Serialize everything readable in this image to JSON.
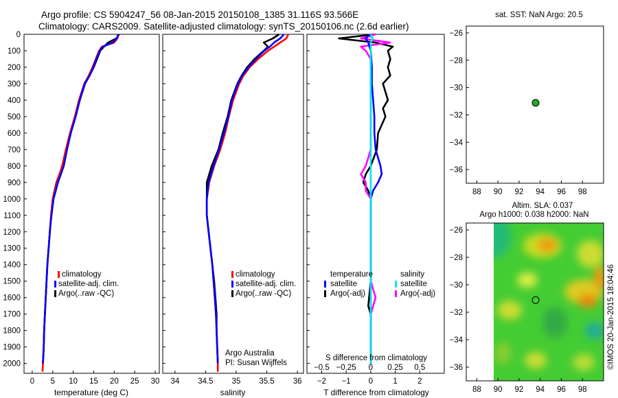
{
  "header": {
    "line1": "Argo profile: CS 5904247_56 08-Jan-2015 20150108_1385 31.116S 93.566E",
    "line2": "Climatology: CARS2009. Satellite-adjusted climatology: synTS_20150106.nc (2.6d earlier)"
  },
  "colors": {
    "climatology": "#ff0000",
    "satellite": "#0000ff",
    "argo": "#000000",
    "sat_s": "#00e5ee",
    "argo_s": "#ff00ff",
    "marker": "#22aa22"
  },
  "chart_data": [
    {
      "type": "line",
      "id": "temperature",
      "xlabel": "temperature (deg C)",
      "xlim": [
        -2,
        31
      ],
      "ylim": [
        0,
        2060
      ],
      "xticks": [
        0,
        5,
        10,
        15,
        20,
        25,
        30
      ],
      "xtick_labels": [
        "0",
        "5",
        "10",
        "15",
        "20",
        "25",
        "30"
      ],
      "yticks": [
        0,
        100,
        200,
        300,
        400,
        500,
        600,
        700,
        800,
        900,
        1000,
        1100,
        1200,
        1300,
        1400,
        1500,
        1600,
        1700,
        1800,
        1900,
        2000
      ],
      "ytick_labels": [
        "0",
        "100",
        "200",
        "300",
        "400",
        "500",
        "600",
        "700",
        "800",
        "900",
        "1000",
        "1100",
        "1200",
        "1300",
        "1400",
        "1500",
        "1600",
        "1700",
        "1800",
        "1900",
        "2000"
      ],
      "legend": [
        "climatology",
        "satellite-adj. clim.",
        "Argo(..raw -QC)"
      ],
      "series": [
        {
          "name": "climatology",
          "color": "#ff0000",
          "depth": [
            0,
            25,
            50,
            75,
            100,
            150,
            200,
            250,
            300,
            400,
            500,
            600,
            700,
            800,
            900,
            1000,
            1100,
            1200,
            1300,
            1400,
            1500,
            1600,
            1700,
            1800,
            1900,
            2000,
            2050
          ],
          "values": [
            21,
            20.8,
            20,
            17,
            16.3,
            15.5,
            14.7,
            13.8,
            12.7,
            11.4,
            10.4,
            9.2,
            8.2,
            7.3,
            6.0,
            5.0,
            4.6,
            4.3,
            4.0,
            3.7,
            3.5,
            3.3,
            3.1,
            2.9,
            2.8,
            2.6,
            2.5
          ]
        },
        {
          "name": "satellite-adj. clim.",
          "color": "#0000ff",
          "depth": [
            0,
            25,
            50,
            75,
            100,
            150,
            200,
            250,
            300,
            400,
            500,
            600,
            700,
            800,
            900,
            1000,
            1100,
            1200,
            1300,
            1400,
            1500,
            1600,
            1700,
            1800,
            1900,
            2000
          ],
          "values": [
            21,
            20.6,
            19.6,
            17.2,
            16.5,
            15.6,
            14.9,
            14.0,
            12.8,
            11.6,
            10.6,
            9.4,
            8.5,
            7.7,
            6.3,
            5.2,
            4.7,
            4.3,
            4.0,
            3.7,
            3.5,
            3.3,
            3.1,
            2.9,
            2.8,
            2.6
          ]
        },
        {
          "name": "Argo(..raw -QC)",
          "color": "#000000",
          "depth": [
            0,
            25,
            50,
            75,
            100,
            150,
            200,
            250,
            300,
            400,
            500,
            600,
            700,
            800,
            900,
            1000,
            1100,
            1200,
            1300,
            1400,
            1500,
            1600,
            1700,
            1800,
            1900,
            2000
          ],
          "values": [
            21.2,
            20.5,
            18.5,
            17.5,
            16.6,
            15.8,
            15.0,
            14.0,
            12.9,
            11.6,
            10.5,
            9.4,
            8.4,
            7.4,
            5.9,
            5.0,
            4.6,
            4.3,
            4.0,
            3.7,
            3.5,
            3.3,
            3.1,
            2.9,
            2.8,
            2.6
          ]
        }
      ]
    },
    {
      "type": "line",
      "id": "salinity",
      "xlabel": "salinity",
      "xlim": [
        33.8,
        36.1
      ],
      "ylim": [
        0,
        2060
      ],
      "xticks": [
        34,
        34.5,
        35,
        35.5,
        36
      ],
      "xtick_labels": [
        "34",
        "34.5",
        "35",
        "35.5",
        "36"
      ],
      "legend": [
        "climatology",
        "satellite-adj. clim.",
        "Argo(..raw -QC)"
      ],
      "annotation": [
        "Argo Australia",
        "PI: Susan Wijffels"
      ],
      "series": [
        {
          "name": "climatology",
          "color": "#ff0000",
          "depth": [
            0,
            25,
            50,
            75,
            100,
            150,
            200,
            250,
            300,
            400,
            500,
            600,
            700,
            800,
            900,
            1000,
            1100,
            1200,
            1300,
            1400,
            1500,
            1600,
            1700,
            1800,
            1900,
            2000,
            2050
          ],
          "values": [
            35.85,
            35.82,
            35.72,
            35.62,
            35.52,
            35.36,
            35.22,
            35.12,
            35.05,
            34.95,
            34.88,
            34.82,
            34.74,
            34.64,
            34.56,
            34.52,
            34.52,
            34.55,
            34.58,
            34.61,
            34.63,
            34.65,
            34.67,
            34.68,
            34.69,
            34.7,
            34.7
          ]
        },
        {
          "name": "satellite-adj. clim.",
          "color": "#0000ff",
          "depth": [
            0,
            25,
            50,
            75,
            100,
            150,
            200,
            250,
            300,
            400,
            500,
            600,
            700,
            800,
            900,
            1000,
            1100,
            1200,
            1300,
            1400,
            1500,
            1600,
            1700,
            1800,
            1900,
            2000
          ],
          "values": [
            35.78,
            35.72,
            35.62,
            35.55,
            35.46,
            35.32,
            35.2,
            35.1,
            35.03,
            34.93,
            34.87,
            34.8,
            34.72,
            34.63,
            34.55,
            34.52,
            34.52,
            34.55,
            34.58,
            34.61,
            34.63,
            34.65,
            34.67,
            34.68,
            34.69,
            34.7
          ]
        },
        {
          "name": "Argo(..raw -QC)",
          "color": "#000000",
          "depth": [
            0,
            25,
            50,
            75,
            100,
            150,
            200,
            250,
            300,
            400,
            500,
            600,
            700,
            800,
            900,
            1000,
            1100,
            1200,
            1300,
            1400,
            1500,
            1600,
            1700,
            1800,
            1900,
            2000
          ],
          "values": [
            35.7,
            35.6,
            35.45,
            35.52,
            35.45,
            35.3,
            35.18,
            35.09,
            35.02,
            34.92,
            34.86,
            34.78,
            34.71,
            34.6,
            34.52,
            34.52,
            34.52,
            34.55,
            34.58,
            34.61,
            34.64,
            34.66,
            34.68,
            34.68,
            34.69,
            34.7
          ]
        }
      ]
    },
    {
      "type": "line",
      "id": "difference",
      "xlabel": "T difference from climatology",
      "xlabel_top": "S difference from climatology",
      "xlim": [
        -2.6,
        3.0
      ],
      "ylim": [
        0,
        2060
      ],
      "xticks": [
        -2,
        -1,
        0,
        1,
        2
      ],
      "xtick_labels": [
        "−2",
        "−1",
        "0",
        "1",
        "2"
      ],
      "sticks": [
        -0.5,
        -0.25,
        0,
        0.25,
        0.5
      ],
      "stick_labels": [
        "−0.5",
        "−0.25",
        "0",
        "0.25",
        "0.5"
      ],
      "legend_titles": [
        "temperature",
        "salinity"
      ],
      "legend": [
        "satellite",
        "Argo(-adj)",
        "satellite",
        "Argo(-adj)"
      ],
      "series": [
        {
          "name": "T satellite",
          "color": "#0000ff",
          "depth": [
            0,
            25,
            50,
            100,
            200,
            300,
            400,
            500,
            600,
            700,
            800,
            850,
            900,
            950,
            1000,
            1100,
            1200,
            1400,
            1600,
            1800,
            2000
          ],
          "values": [
            0,
            -0.2,
            -0.1,
            0,
            0.05,
            0.05,
            0.1,
            0.15,
            0.15,
            0.2,
            0.4,
            0.45,
            0.3,
            0.1,
            0,
            0,
            0,
            0,
            0,
            0,
            0
          ]
        },
        {
          "name": "T Argo(-adj)",
          "color": "#000000",
          "depth": [
            0,
            25,
            50,
            75,
            100,
            150,
            200,
            250,
            300,
            350,
            400,
            450,
            500,
            600,
            700,
            800,
            850,
            900,
            950,
            1000,
            1100,
            1300,
            1500,
            1650,
            1700,
            1800,
            2000
          ],
          "values": [
            0.2,
            -1.3,
            0.2,
            0.9,
            0.7,
            0.8,
            0.7,
            0.8,
            0.5,
            0.6,
            0.7,
            0.5,
            0.6,
            0.3,
            0.25,
            0,
            -0.2,
            -0.3,
            -0.1,
            0,
            0,
            0,
            0,
            -0.1,
            0,
            0,
            0
          ]
        },
        {
          "name": "S satellite",
          "color": "#00e5ee",
          "depth": [
            0,
            25,
            50,
            100,
            200,
            300,
            500,
            700,
            900,
            1100,
            1300,
            1500,
            1700,
            1900,
            2000
          ],
          "values": [
            0,
            0.02,
            0,
            0,
            0,
            0,
            0,
            0,
            0,
            0,
            0,
            0,
            0,
            0,
            0
          ]
        },
        {
          "name": "S Argo(-adj)",
          "color": "#ff00ff",
          "depth": [
            0,
            25,
            50,
            75,
            100,
            150,
            200,
            300,
            400,
            500,
            600,
            700,
            800,
            850,
            900,
            950,
            1000,
            1100,
            1300,
            1500,
            1600,
            1700,
            1900,
            2000
          ],
          "values": [
            0.05,
            -0.1,
            0.2,
            -0.1,
            -0.05,
            0,
            0,
            0,
            0,
            0,
            0,
            0,
            -0.05,
            -0.1,
            -0.05,
            -0.05,
            0,
            0,
            0,
            0,
            0.05,
            0,
            0,
            0
          ]
        }
      ]
    },
    {
      "type": "scatter",
      "id": "sst-map",
      "title": "sat. SST: NaN Argo: 20.5",
      "xlim": [
        87,
        100
      ],
      "ylim": [
        -37,
        -25.5
      ],
      "xticks": [
        88,
        90,
        92,
        94,
        96,
        98
      ],
      "xtick_labels": [
        "88",
        "90",
        "92",
        "94",
        "96",
        "98"
      ],
      "yticks": [
        -26,
        -28,
        -30,
        -32,
        -34,
        -36
      ],
      "ytick_labels": [
        "−26",
        "−28",
        "−30",
        "−32",
        "−34",
        "−36"
      ],
      "points": [
        {
          "lon": 93.566,
          "lat": -31.116
        }
      ]
    },
    {
      "type": "heatmap",
      "id": "sla-map",
      "title_lines": [
        "Altim. SLA: 0.037",
        "Argo h1000: 0.038 h2000: NaN"
      ],
      "xlim": [
        87,
        100
      ],
      "ylim": [
        -37,
        -25.5
      ],
      "data_lon_start": 90,
      "xticks": [
        88,
        90,
        92,
        94,
        96,
        98
      ],
      "xtick_labels": [
        "88",
        "90",
        "92",
        "94",
        "96",
        "98"
      ],
      "yticks": [
        -26,
        -28,
        -30,
        -32,
        -34,
        -36
      ],
      "ytick_labels": [
        "−26",
        "−28",
        "−30",
        "−32",
        "−34",
        "−36"
      ],
      "points": [
        {
          "lon": 93.566,
          "lat": -31.116
        }
      ]
    }
  ],
  "footer": {
    "credit": "©IMOS 20-Jan-2015 18:04:46"
  }
}
